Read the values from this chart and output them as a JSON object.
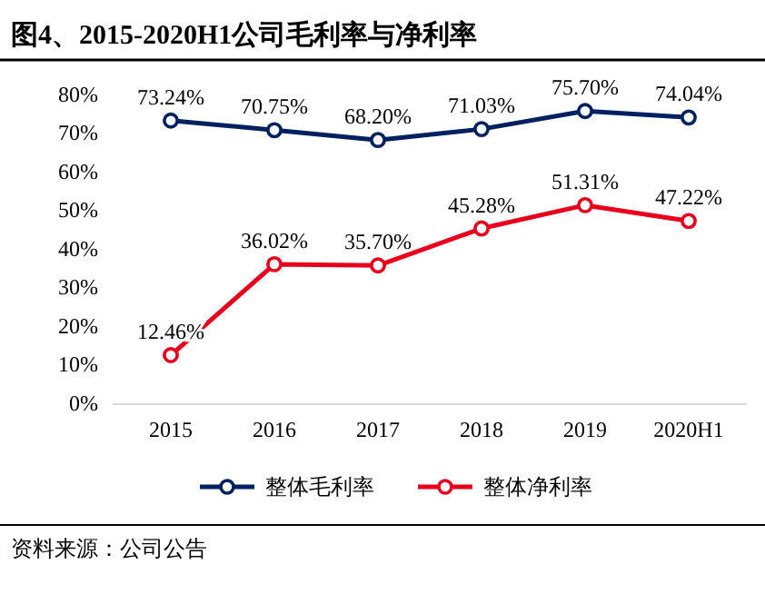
{
  "chart_data": {
    "type": "line",
    "title": "图4、2015-2020H1公司毛利率与净利率",
    "categories": [
      "2015",
      "2016",
      "2017",
      "2018",
      "2019",
      "2020H1"
    ],
    "series": [
      {
        "name": "整体毛利率",
        "color": "#002060",
        "values": [
          73.24,
          70.75,
          68.2,
          71.03,
          75.7,
          74.04
        ],
        "value_labels": [
          "73.24%",
          "70.75%",
          "68.20%",
          "71.03%",
          "75.70%",
          "74.04%"
        ]
      },
      {
        "name": "整体净利率",
        "color": "#e8001c",
        "values": [
          12.46,
          36.02,
          35.7,
          45.28,
          51.31,
          47.22
        ],
        "value_labels": [
          "12.46%",
          "36.02%",
          "35.70%",
          "45.28%",
          "51.31%",
          "47.22%"
        ]
      }
    ],
    "ylim": [
      0,
      80
    ],
    "yticks": [
      {
        "value": 0,
        "label": "0%"
      },
      {
        "value": 10,
        "label": "10%"
      },
      {
        "value": 20,
        "label": "20%"
      },
      {
        "value": 30,
        "label": "30%"
      },
      {
        "value": 40,
        "label": "40%"
      },
      {
        "value": 50,
        "label": "50%"
      },
      {
        "value": 60,
        "label": "60%"
      },
      {
        "value": 70,
        "label": "70%"
      },
      {
        "value": 80,
        "label": "80%"
      }
    ],
    "marker": "circle",
    "line_style": "solid",
    "grid": false,
    "legend": "bottom",
    "annotations": [
      "资料来源：公司公告"
    ]
  }
}
